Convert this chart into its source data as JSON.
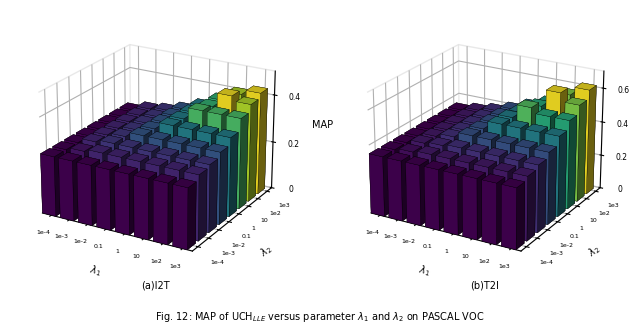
{
  "lambda_labels": [
    "1e-4",
    "1e-3",
    "1e-2",
    "0.1",
    "1",
    "10",
    "1e2",
    "1e3"
  ],
  "I2T": [
    [
      0.25,
      0.25,
      0.25,
      0.25,
      0.25,
      0.25,
      0.25,
      0.25
    ],
    [
      0.25,
      0.26,
      0.27,
      0.27,
      0.27,
      0.27,
      0.27,
      0.27
    ],
    [
      0.25,
      0.27,
      0.28,
      0.28,
      0.28,
      0.28,
      0.28,
      0.28
    ],
    [
      0.25,
      0.27,
      0.28,
      0.3,
      0.3,
      0.3,
      0.3,
      0.3
    ],
    [
      0.25,
      0.27,
      0.28,
      0.3,
      0.33,
      0.33,
      0.33,
      0.33
    ],
    [
      0.25,
      0.27,
      0.28,
      0.3,
      0.33,
      0.38,
      0.37,
      0.37
    ],
    [
      0.25,
      0.27,
      0.28,
      0.3,
      0.33,
      0.38,
      0.43,
      0.41
    ],
    [
      0.25,
      0.27,
      0.28,
      0.3,
      0.33,
      0.38,
      0.41,
      0.43
    ]
  ],
  "T2I": [
    [
      0.35,
      0.35,
      0.35,
      0.35,
      0.35,
      0.35,
      0.35,
      0.35
    ],
    [
      0.35,
      0.36,
      0.37,
      0.37,
      0.37,
      0.37,
      0.37,
      0.37
    ],
    [
      0.35,
      0.37,
      0.38,
      0.39,
      0.39,
      0.39,
      0.39,
      0.39
    ],
    [
      0.35,
      0.37,
      0.39,
      0.42,
      0.42,
      0.42,
      0.42,
      0.42
    ],
    [
      0.35,
      0.37,
      0.39,
      0.42,
      0.47,
      0.47,
      0.46,
      0.46
    ],
    [
      0.35,
      0.37,
      0.39,
      0.42,
      0.47,
      0.55,
      0.52,
      0.5
    ],
    [
      0.35,
      0.37,
      0.39,
      0.42,
      0.47,
      0.52,
      0.62,
      0.57
    ],
    [
      0.35,
      0.37,
      0.39,
      0.42,
      0.47,
      0.52,
      0.57,
      0.62
    ]
  ],
  "title_a": "(a)I2T",
  "title_b": "(b)T2I",
  "ylabel": "MAP",
  "xlabel1": "$\\lambda_1$",
  "xlabel2": "$\\lambda_2$",
  "ylim_a": [
    0,
    0.5
  ],
  "ylim_b": [
    0,
    0.7
  ],
  "yticks_a": [
    0,
    0.2,
    0.4
  ],
  "yticks_b": [
    0,
    0.2,
    0.4,
    0.6
  ]
}
